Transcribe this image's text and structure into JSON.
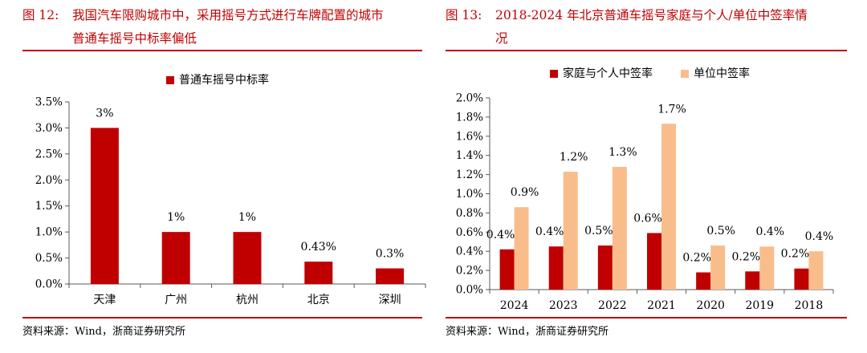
{
  "colors": {
    "red": "#c00000",
    "bar_red": "#c00000",
    "bar_peach": "#f9bd8c",
    "axis": "#595959"
  },
  "left": {
    "figure_number": "图 12:",
    "title_line1": "我国汽车限购城市中，采用摇号方式进行车牌配置的城市",
    "title_line2": "普通车摇号中标率偏低",
    "source": "资料来源：Wind，浙商证券研究所",
    "chart_data": {
      "type": "bar",
      "title": "",
      "legend": [
        "普通车摇号中标率"
      ],
      "legend_position": "top-center",
      "categories": [
        "天津",
        "广州",
        "杭州",
        "北京",
        "深圳"
      ],
      "series": [
        {
          "name": "普通车摇号中标率",
          "values": [
            3.0,
            1.0,
            1.0,
            0.43,
            0.3
          ]
        }
      ],
      "data_labels": [
        "3%",
        "1%",
        "1%",
        "0.43%",
        "0.3%"
      ],
      "y_ticks": [
        "0.0%",
        "0.5%",
        "1.0%",
        "1.5%",
        "2.0%",
        "2.5%",
        "3.0%",
        "3.5%"
      ],
      "ylim": [
        0,
        3.5
      ],
      "grid": false
    }
  },
  "right": {
    "figure_number": "图 13:",
    "title_line1": "2018-2024 年北京普通车摇号家庭与个人/单位中签率情",
    "title_line2": "况",
    "source": "资料来源：Wind，浙商证券研究所",
    "chart_data": {
      "type": "bar",
      "legend": [
        "家庭与个人中签率",
        "单位中签率"
      ],
      "legend_position": "top-center",
      "categories": [
        "2024",
        "2023",
        "2022",
        "2021",
        "2020",
        "2019",
        "2018"
      ],
      "series": [
        {
          "name": "家庭与个人中签率",
          "values": [
            0.42,
            0.45,
            0.46,
            0.59,
            0.18,
            0.19,
            0.22
          ],
          "labels": [
            "0.4%",
            "0.4%",
            "0.5%",
            "0.6%",
            "0.2%",
            "0.2%",
            "0.2%"
          ]
        },
        {
          "name": "单位中签率",
          "values": [
            0.86,
            1.23,
            1.28,
            1.73,
            0.46,
            0.45,
            0.4
          ],
          "labels": [
            "0.9%",
            "1.2%",
            "1.3%",
            "1.7%",
            "0.5%",
            "0.4%",
            "0.4%"
          ]
        }
      ],
      "y_ticks": [
        "0.0%",
        "0.2%",
        "0.4%",
        "0.6%",
        "0.8%",
        "1.0%",
        "1.2%",
        "1.4%",
        "1.6%",
        "1.8%",
        "2.0%"
      ],
      "ylim": [
        0,
        2.0
      ],
      "grid": false
    }
  }
}
